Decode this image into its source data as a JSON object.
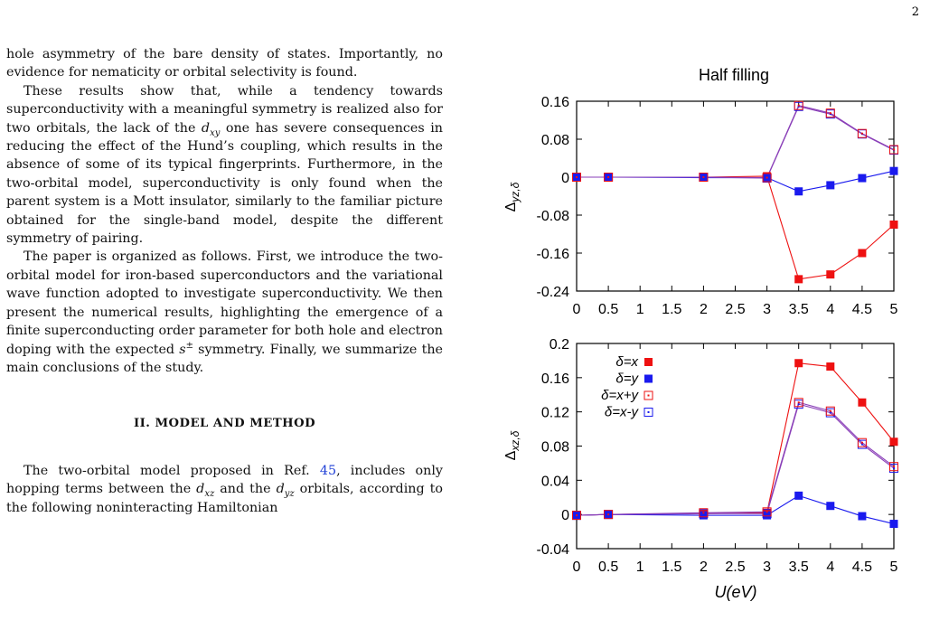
{
  "page_number": "2",
  "text": {
    "p1": "hole asymmetry of the bare density of states. Importantly, no evidence for nematicity or orbital selectivity is found.",
    "p2_a": "These results show that, while a tendency towards superconductivity with a meaningful symmetry is realized also for two orbitals, the lack of the ",
    "p2_d": "d",
    "p2_xy": "xy",
    "p2_b": " one has severe consequences in reducing the effect of the Hund’s coupling, which results in the absence of some of its typical fingerprints. Furthermore, in the two-orbital model, superconductivity is only found when the parent system is a Mott insulator, similarly to the familiar picture obtained for the single-band model, despite the different symmetry of pairing.",
    "p3_a": "The paper is organized as follows. First, we introduce the two-orbital model for iron-based superconductors and the variational wave function adopted to investigate superconductivity. We then present the numerical results, highlighting the emergence of a finite superconducting order parameter for both hole and electron doping with the expected ",
    "p3_s": "s",
    "p3_pm": "±",
    "p3_b": " symmetry. Finally, we summarize the main conclusions of the study.",
    "heading": "II.   MODEL AND METHOD",
    "p4_a": "The two-orbital model proposed in Ref. ",
    "p4_ref": "45",
    "p4_b": ", includes only hopping terms between the ",
    "p4_d1": "d",
    "p4_xz": "xz",
    "p4_c": " and the ",
    "p4_d2": "d",
    "p4_yz": "yz",
    "p4_e": " orbitals, according to the following noninteracting Hamiltonian"
  },
  "figure": {
    "title": "Half filling",
    "top_ylabel": "Δ",
    "top_ylabel_sub": "yz,δ",
    "bottom_ylabel": "Δ",
    "bottom_ylabel_sub": "xz,δ",
    "xlabel": "U(eV)",
    "top_yticks": [
      "0.16",
      "0.08",
      "0",
      "-0.08",
      "-0.16",
      "-0.24"
    ],
    "bottom_yticks": [
      "0.2",
      "0.16",
      "0.12",
      "0.08",
      "0.04",
      "0",
      "-0.04"
    ],
    "xticks": [
      "0",
      "0.5",
      "1",
      "1.5",
      "2",
      "2.5",
      "3",
      "3.5",
      "4",
      "4.5",
      "5"
    ],
    "legend": [
      "δ=x",
      "δ=y",
      "δ=x+y",
      "δ=x-y"
    ],
    "colors": {
      "red": "#ee1111",
      "blue": "#1a1aee",
      "purple": "#8a3fb8"
    }
  },
  "chart_data": [
    {
      "type": "line",
      "title": "Half filling",
      "xlabel": "",
      "ylabel": "Δyz,δ",
      "xlim": [
        0,
        5
      ],
      "ylim": [
        -0.24,
        0.16
      ],
      "x": [
        0,
        0.5,
        2,
        3,
        3.5,
        4,
        4.5,
        5
      ],
      "series": [
        {
          "name": "δ=x",
          "marker": "filled",
          "color": "#ee1111",
          "values": [
            0,
            0,
            0,
            0.002,
            -0.215,
            -0.205,
            -0.16,
            -0.1
          ]
        },
        {
          "name": "δ=y",
          "marker": "filled",
          "color": "#1a1aee",
          "values": [
            0,
            0,
            -0.001,
            -0.001,
            -0.03,
            -0.017,
            -0.002,
            0.013
          ]
        },
        {
          "name": "δ=x+y",
          "marker": "open",
          "color": "#ee1111",
          "values": [
            0,
            0,
            0,
            -0.001,
            0.151,
            0.135,
            0.092,
            0.058
          ]
        },
        {
          "name": "δ=x-y",
          "marker": "open",
          "color": "#1a1aee",
          "values": [
            0,
            0,
            0,
            -0.002,
            0.149,
            0.133,
            0.091,
            0.057
          ]
        }
      ]
    },
    {
      "type": "line",
      "title": "",
      "xlabel": "U(eV)",
      "ylabel": "Δxz,δ",
      "xlim": [
        0,
        5
      ],
      "ylim": [
        -0.04,
        0.2
      ],
      "legend_position": "top-left",
      "x": [
        0,
        0.5,
        2,
        3,
        3.5,
        4,
        4.5,
        5
      ],
      "series": [
        {
          "name": "δ=x",
          "marker": "filled",
          "color": "#ee1111",
          "values": [
            -0.001,
            0,
            0.001,
            0.002,
            0.177,
            0.173,
            0.131,
            0.085
          ]
        },
        {
          "name": "δ=y",
          "marker": "filled",
          "color": "#1a1aee",
          "values": [
            -0.001,
            0,
            -0.001,
            -0.001,
            0.022,
            0.01,
            -0.002,
            -0.011
          ]
        },
        {
          "name": "δ=x+y",
          "marker": "open",
          "color": "#ee1111",
          "values": [
            -0.001,
            0,
            0.002,
            0.003,
            0.131,
            0.121,
            0.084,
            0.056
          ]
        },
        {
          "name": "δ=x-y",
          "marker": "open",
          "color": "#1a1aee",
          "values": [
            -0.001,
            0,
            0.001,
            0.001,
            0.129,
            0.119,
            0.082,
            0.054
          ]
        }
      ]
    }
  ]
}
